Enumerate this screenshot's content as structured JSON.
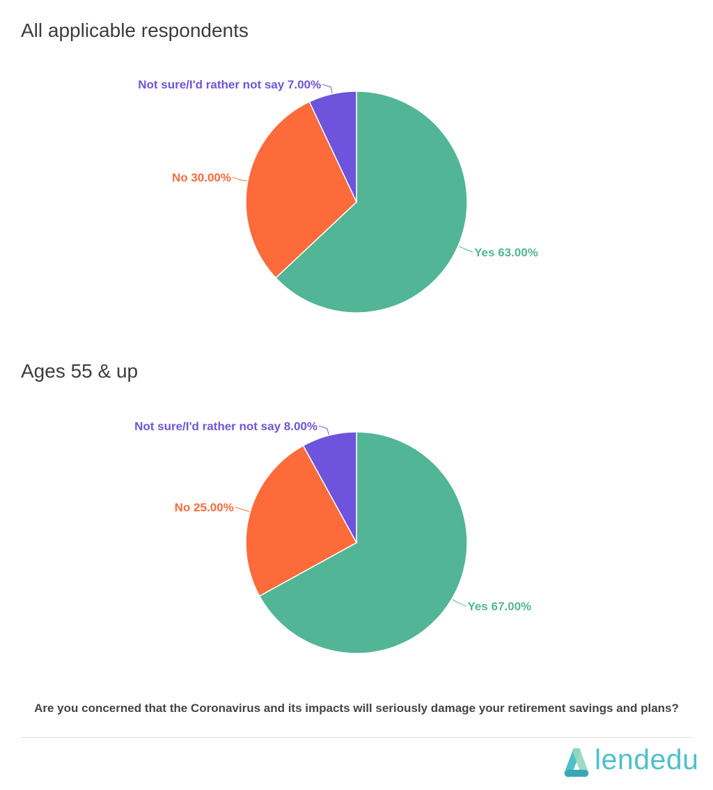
{
  "chart_data": [
    {
      "type": "pie",
      "title": "All applicable respondents",
      "categories": [
        "Yes",
        "No",
        "Not sure/I'd rather not say"
      ],
      "values": [
        63,
        30,
        7
      ],
      "labels": [
        "Yes 63.00%",
        "No 30.00%",
        "Not sure/I'd rather not say 7.00%"
      ],
      "colors": [
        "#52b595",
        "#fd6b3b",
        "#6e54dc"
      ]
    },
    {
      "type": "pie",
      "title": "Ages 55 & up",
      "categories": [
        "Yes",
        "No",
        "Not sure/I'd rather not say"
      ],
      "values": [
        67,
        25,
        8
      ],
      "labels": [
        "Yes 67.00%",
        "No 25.00%",
        "Not sure/I'd rather not say 8.00%"
      ],
      "colors": [
        "#52b595",
        "#fd6b3b",
        "#6e54dc"
      ]
    }
  ],
  "question": "Are you concerned that the Coronavirus and its impacts will seriously damage your retirement savings and plans?",
  "logo": {
    "text": "lendedu",
    "color": "#4fc0c9",
    "icon": "lendedu-logo-icon"
  }
}
